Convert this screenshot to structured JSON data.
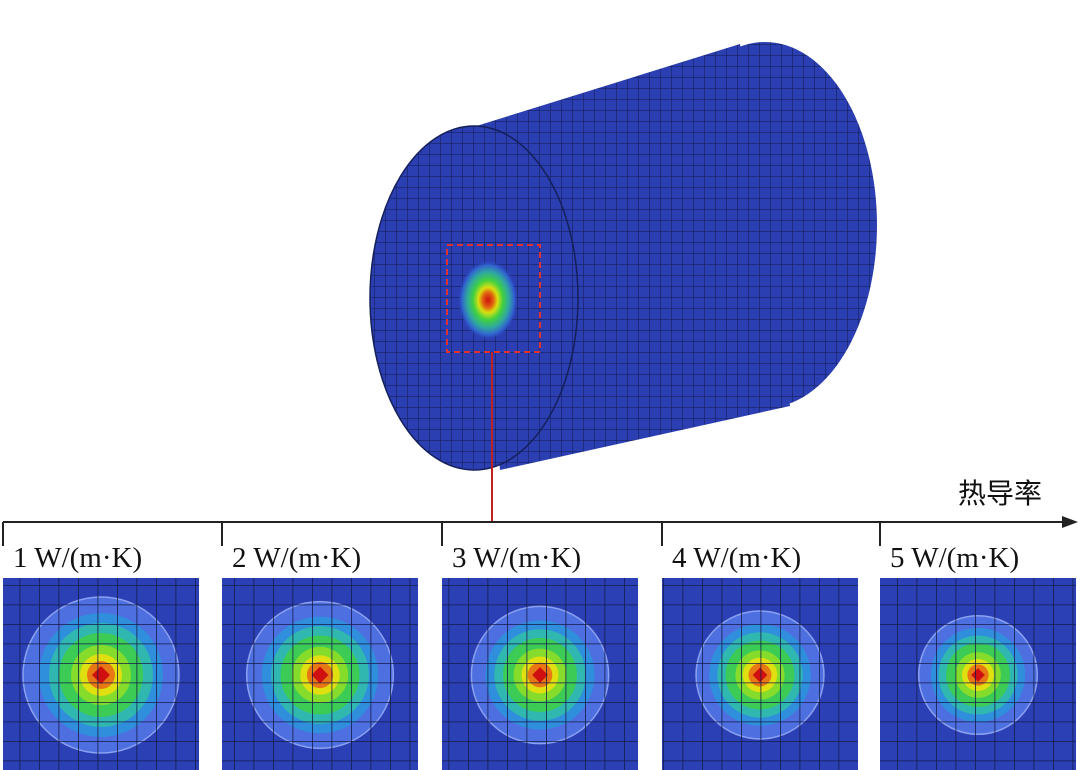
{
  "axis_label": "热导率",
  "panels": [
    {
      "label": "1 W/(m·K)"
    },
    {
      "label": "2 W/(m·K)"
    },
    {
      "label": "3 W/(m·K)"
    },
    {
      "label": "4 W/(m·K)"
    },
    {
      "label": "5 W/(m·K)"
    }
  ]
}
